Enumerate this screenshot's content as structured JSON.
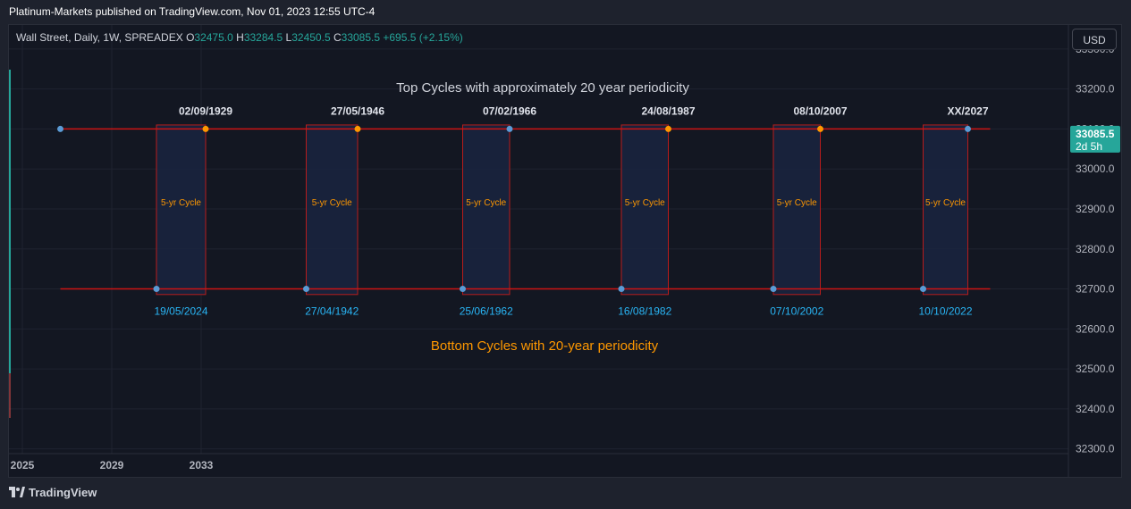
{
  "header": {
    "published_by": "Platinum-Markets published on TradingView.com, Nov 01, 2023 12:55 UTC-4"
  },
  "legend": {
    "symbol": "Wall Street, Daily, 1W, SPREADEX",
    "o_label": "O",
    "o_value": "32475.0",
    "h_label": "H",
    "h_value": "33284.5",
    "l_label": "L",
    "l_value": "32450.5",
    "c_label": "C",
    "c_value": "33085.5",
    "change": "+695.5 (+2.15%)"
  },
  "currency_button": "USD",
  "footer": {
    "brand": "TradingView"
  },
  "colors": {
    "background": "#131722",
    "line_red": "#cc1414",
    "marker_blue": "#5b9bd5",
    "marker_orange": "#ff9800",
    "bottom_text": "#ff9800",
    "bottom_dates": "#29b6f6",
    "price_tag": "#26a69a"
  },
  "chart_data": {
    "type": "line",
    "y_axis": {
      "ticks": [
        "33300.0",
        "33200.0",
        "33100.0",
        "33000.0",
        "32900.0",
        "32800.0",
        "32700.0",
        "32600.0",
        "32500.0",
        "32400.0",
        "32300.0"
      ],
      "tick_values": [
        33300,
        33200,
        33100,
        33000,
        32900,
        32800,
        32700,
        32600,
        32500,
        32400,
        32300
      ],
      "ylim": [
        32230,
        33360
      ]
    },
    "x_axis": {
      "ticks": [
        "2025",
        "2029",
        "2033"
      ],
      "tick_values": [
        2025,
        2029,
        2033
      ],
      "xlim": [
        2024.4,
        2071.8
      ]
    },
    "current_price": {
      "value": 33085.5,
      "label": "33085.5",
      "countdown": "2d 5h"
    },
    "top_line": {
      "y": 33100,
      "x_start": 2026.7,
      "x_end": 2068.3
    },
    "bottom_line": {
      "y": 32700,
      "x_start": 2026.7,
      "x_end": 2068.3
    },
    "top_title": "Top Cycles with approximately 20 year periodicity",
    "bottom_title": "Bottom Cycles with 20-year periodicity",
    "cycles": [
      {
        "x_start": 2031.0,
        "x_end": 2033.2,
        "top_label": "02/09/1929",
        "bottom_label": "19/05/2024",
        "cycle_label": "5-yr Cycle",
        "top_color": "orange",
        "bottom_color": "blue"
      },
      {
        "x_start": 2037.7,
        "x_end": 2040.0,
        "top_label": "27/05/1946",
        "bottom_label": "27/04/1942",
        "cycle_label": "5-yr Cycle",
        "top_color": "orange",
        "bottom_color": "blue"
      },
      {
        "x_start": 2044.7,
        "x_end": 2046.8,
        "top_label": "07/02/1966",
        "bottom_label": "25/06/1962",
        "cycle_label": "5-yr Cycle",
        "top_color": "blue",
        "bottom_color": "blue"
      },
      {
        "x_start": 2051.8,
        "x_end": 2053.9,
        "top_label": "24/08/1987",
        "bottom_label": "16/08/1982",
        "cycle_label": "5-yr Cycle",
        "top_color": "orange",
        "bottom_color": "blue"
      },
      {
        "x_start": 2058.6,
        "x_end": 2060.7,
        "top_label": "08/10/2007",
        "bottom_label": "07/10/2002",
        "cycle_label": "5-yr Cycle",
        "top_color": "orange",
        "bottom_color": "blue"
      },
      {
        "x_start": 2065.3,
        "x_end": 2067.3,
        "top_label": "XX/2027",
        "bottom_label": "10/10/2022",
        "cycle_label": "5-yr Cycle",
        "top_color": "blue",
        "bottom_color": "blue"
      }
    ],
    "start_marker": {
      "x": 2026.7,
      "y": 33100
    }
  }
}
